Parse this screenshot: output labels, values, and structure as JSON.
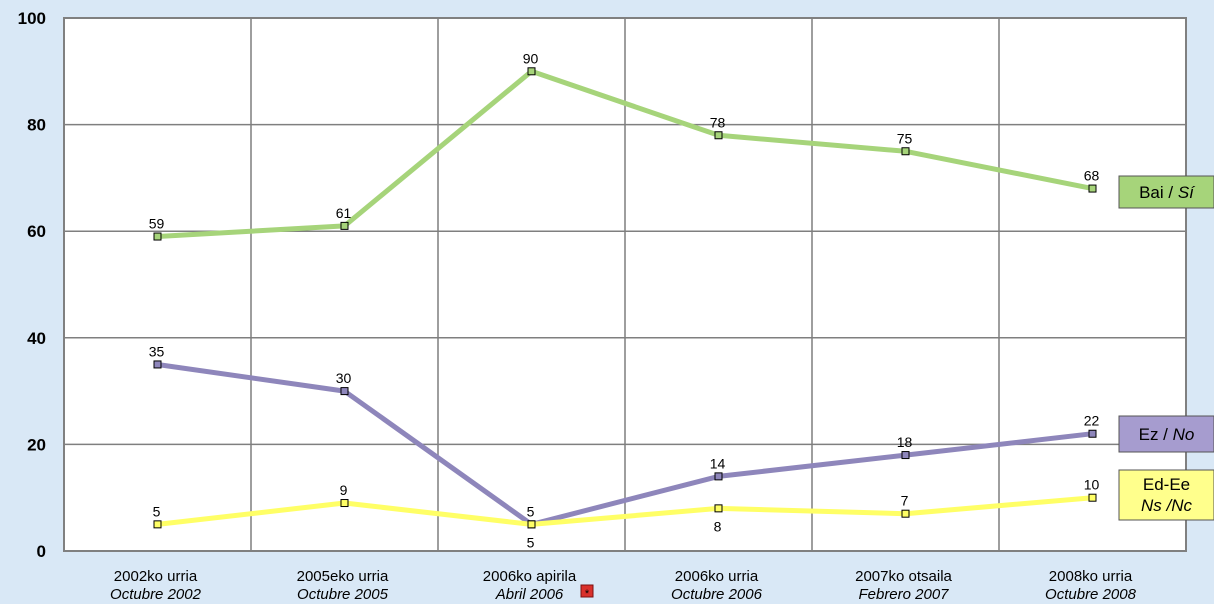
{
  "chart_data": {
    "type": "line",
    "title": "",
    "xlabel": "",
    "ylabel": "",
    "ylim": [
      0,
      100
    ],
    "yticks": [
      "0",
      "20",
      "40",
      "60",
      "80",
      "100"
    ],
    "grid": true,
    "categories": [
      {
        "line1": "2002ko urria",
        "line2": "Octubre 2002"
      },
      {
        "line1": "2005eko urria",
        "line2": "Octubre 2005"
      },
      {
        "line1": "2006ko apirila",
        "line2": "Abril 2006"
      },
      {
        "line1": "2006ko urria",
        "line2": "Octubre 2006"
      },
      {
        "line1": "2007ko otsaila",
        "line2": "Febrero 2007"
      },
      {
        "line1": "2008ko urria",
        "line2": "Octubre 2008"
      }
    ],
    "footnote_marker": "*",
    "series": [
      {
        "name_a": "Bai / ",
        "name_b": "Sí",
        "color": "#a6d47a",
        "values": [
          59,
          61,
          90,
          78,
          75,
          68
        ]
      },
      {
        "name_a": "Ez / ",
        "name_b": "No",
        "color": "#8e86bb",
        "values": [
          35,
          30,
          5,
          14,
          18,
          22
        ]
      },
      {
        "name_a": "Ed-Ee",
        "name_b": "Ns /Nc",
        "color": "#ffff66",
        "values": [
          5,
          9,
          5,
          8,
          7,
          10
        ]
      }
    ],
    "legend_colors": [
      "#a6d47a",
      "#a69ccf",
      "#ffff8c"
    ]
  }
}
